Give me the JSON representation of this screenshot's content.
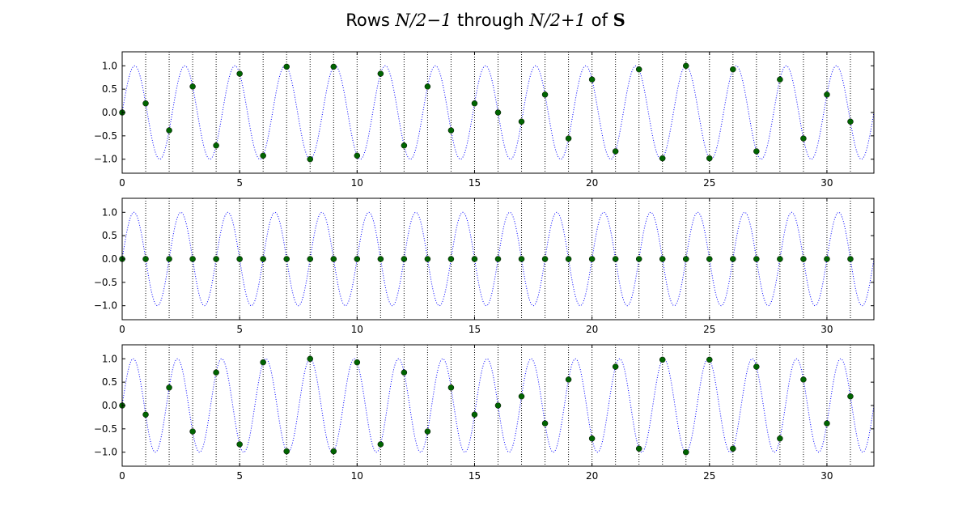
{
  "figure": {
    "title_parts": [
      "Rows ",
      "N/2−1",
      " through ",
      "N/2+1",
      " of ",
      "S"
    ],
    "background": "#ffffff"
  },
  "chart_data": [
    {
      "type": "scatter",
      "row": "N/2-1",
      "xlim": [
        0,
        32
      ],
      "ylim": [
        -1.3,
        1.3
      ],
      "xticks": [
        "0",
        "5",
        "10",
        "15",
        "20",
        "25",
        "30"
      ],
      "yticks": [
        "1.0",
        "0.5",
        "0.0",
        "−0.5",
        "−1.0"
      ],
      "ytick_values": [
        1.0,
        0.5,
        0.0,
        -0.5,
        -1.0
      ],
      "xtick_values": [
        0,
        5,
        10,
        15,
        20,
        25,
        30
      ],
      "vlines_x": [
        1,
        2,
        3,
        4,
        5,
        6,
        7,
        8,
        9,
        10,
        11,
        12,
        13,
        14,
        15,
        16,
        17,
        18,
        19,
        20,
        21,
        22,
        23,
        24,
        25,
        26,
        27,
        28,
        29,
        30,
        31
      ],
      "curve": {
        "function": "sin(2*pi*15*x/32)",
        "color": "#0000ff",
        "style": "dotted"
      },
      "points": {
        "color": "#006400",
        "x": [
          0,
          1,
          2,
          3,
          4,
          5,
          6,
          7,
          8,
          9,
          10,
          11,
          12,
          13,
          14,
          15,
          16,
          17,
          18,
          19,
          20,
          21,
          22,
          23,
          24,
          25,
          26,
          27,
          28,
          29,
          30,
          31
        ],
        "y": [
          0.0,
          0.195,
          -0.383,
          0.556,
          -0.707,
          0.831,
          -0.924,
          0.981,
          -1.0,
          0.981,
          -0.924,
          0.831,
          -0.707,
          0.556,
          -0.383,
          0.195,
          0.0,
          -0.195,
          0.383,
          -0.556,
          0.707,
          -0.831,
          0.924,
          -0.981,
          1.0,
          -0.981,
          0.924,
          -0.831,
          0.707,
          -0.556,
          0.383,
          -0.195
        ]
      }
    },
    {
      "type": "scatter",
      "row": "N/2",
      "xlim": [
        0,
        32
      ],
      "ylim": [
        -1.3,
        1.3
      ],
      "xticks": [
        "0",
        "5",
        "10",
        "15",
        "20",
        "25",
        "30"
      ],
      "yticks": [
        "1.0",
        "0.5",
        "0.0",
        "−0.5",
        "−1.0"
      ],
      "ytick_values": [
        1.0,
        0.5,
        0.0,
        -0.5,
        -1.0
      ],
      "xtick_values": [
        0,
        5,
        10,
        15,
        20,
        25,
        30
      ],
      "vlines_x": [
        1,
        2,
        3,
        4,
        5,
        6,
        7,
        8,
        9,
        10,
        11,
        12,
        13,
        14,
        15,
        16,
        17,
        18,
        19,
        20,
        21,
        22,
        23,
        24,
        25,
        26,
        27,
        28,
        29,
        30,
        31
      ],
      "curve": {
        "function": "sin(2*pi*16*x/32)",
        "color": "#0000ff",
        "style": "dotted"
      },
      "points": {
        "color": "#006400",
        "x": [
          0,
          1,
          2,
          3,
          4,
          5,
          6,
          7,
          8,
          9,
          10,
          11,
          12,
          13,
          14,
          15,
          16,
          17,
          18,
          19,
          20,
          21,
          22,
          23,
          24,
          25,
          26,
          27,
          28,
          29,
          30,
          31
        ],
        "y": [
          0,
          0,
          0,
          0,
          0,
          0,
          0,
          0,
          0,
          0,
          0,
          0,
          0,
          0,
          0,
          0,
          0,
          0,
          0,
          0,
          0,
          0,
          0,
          0,
          0,
          0,
          0,
          0,
          0,
          0,
          0,
          0
        ]
      }
    },
    {
      "type": "scatter",
      "row": "N/2+1",
      "xlim": [
        0,
        32
      ],
      "ylim": [
        -1.3,
        1.3
      ],
      "xticks": [
        "0",
        "5",
        "10",
        "15",
        "20",
        "25",
        "30"
      ],
      "yticks": [
        "1.0",
        "0.5",
        "0.0",
        "−0.5",
        "−1.0"
      ],
      "ytick_values": [
        1.0,
        0.5,
        0.0,
        -0.5,
        -1.0
      ],
      "xtick_values": [
        0,
        5,
        10,
        15,
        20,
        25,
        30
      ],
      "vlines_x": [
        1,
        2,
        3,
        4,
        5,
        6,
        7,
        8,
        9,
        10,
        11,
        12,
        13,
        14,
        15,
        16,
        17,
        18,
        19,
        20,
        21,
        22,
        23,
        24,
        25,
        26,
        27,
        28,
        29,
        30,
        31
      ],
      "curve": {
        "function": "sin(2*pi*17*x/32)",
        "color": "#0000ff",
        "style": "dotted"
      },
      "points": {
        "color": "#006400",
        "x": [
          0,
          1,
          2,
          3,
          4,
          5,
          6,
          7,
          8,
          9,
          10,
          11,
          12,
          13,
          14,
          15,
          16,
          17,
          18,
          19,
          20,
          21,
          22,
          23,
          24,
          25,
          26,
          27,
          28,
          29,
          30,
          31
        ],
        "y": [
          0.0,
          -0.195,
          0.383,
          -0.556,
          0.707,
          -0.831,
          0.924,
          -0.981,
          1.0,
          -0.981,
          0.924,
          -0.831,
          0.707,
          -0.556,
          0.383,
          -0.195,
          0.0,
          0.195,
          -0.383,
          0.556,
          -0.707,
          0.831,
          -0.924,
          0.981,
          -1.0,
          0.981,
          -0.924,
          0.831,
          -0.707,
          0.556,
          -0.383,
          0.195
        ]
      }
    }
  ]
}
